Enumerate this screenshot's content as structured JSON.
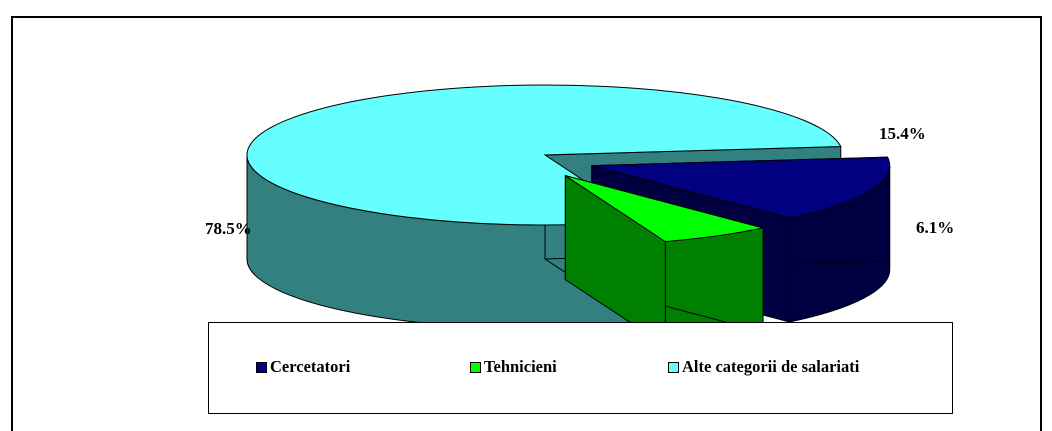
{
  "chart_data": {
    "type": "pie",
    "style": "3d-exploded",
    "legend_position": "bottom",
    "slices": [
      {
        "name": "Cercetatori",
        "value": 15.4,
        "label": "15.4%",
        "color": "#000080",
        "side_color": "#000040"
      },
      {
        "name": "Tehnicieni",
        "value": 6.1,
        "label": "6.1%",
        "color": "#00FF00",
        "side_color": "#008000"
      },
      {
        "name": "Alte categorii de salariati",
        "value": 78.5,
        "label": "78.5%",
        "color": "#66FFFF",
        "side_color": "#338080"
      }
    ]
  }
}
